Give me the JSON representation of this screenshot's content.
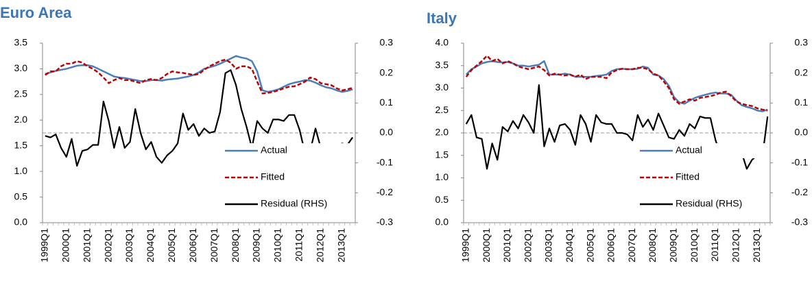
{
  "chart_data": [
    {
      "type": "line",
      "title": "Euro Area",
      "categories": [
        "1999Q1",
        null,
        null,
        null,
        "2000Q1",
        null,
        null,
        null,
        "2001Q1",
        null,
        null,
        null,
        "2002Q1",
        null,
        null,
        null,
        "2003Q1",
        null,
        null,
        null,
        "2004Q1",
        null,
        null,
        null,
        "2005Q1",
        null,
        null,
        null,
        "2006Q1",
        null,
        null,
        null,
        "2007Q1",
        null,
        null,
        null,
        "2008Q1",
        null,
        null,
        null,
        "2009Q1",
        null,
        null,
        null,
        "2010Q1",
        null,
        null,
        null,
        "2011Q1",
        null,
        null,
        null,
        "2012Q1",
        null,
        null,
        null,
        "2013Q1",
        null,
        null
      ],
      "series": [
        {
          "name": "Actual",
          "color": "#4a7ebb",
          "dashed": false,
          "values": [
            2.9,
            2.93,
            2.96,
            2.98,
            3.0,
            3.03,
            3.06,
            3.07,
            3.07,
            3.05,
            3.0,
            2.95,
            2.9,
            2.85,
            2.83,
            2.82,
            2.8,
            2.78,
            2.76,
            2.76,
            2.78,
            2.78,
            2.77,
            2.79,
            2.8,
            2.81,
            2.83,
            2.85,
            2.88,
            2.93,
            3.0,
            3.03,
            3.06,
            3.1,
            3.15,
            3.2,
            3.25,
            3.22,
            3.2,
            3.15,
            2.95,
            2.58,
            2.55,
            2.57,
            2.6,
            2.65,
            2.7,
            2.73,
            2.75,
            2.78,
            2.77,
            2.73,
            2.68,
            2.64,
            2.62,
            2.58,
            2.55,
            2.57,
            2.6
          ]
        },
        {
          "name": "Fitted",
          "color": "#c00000",
          "dashed": true,
          "values": [
            2.88,
            2.95,
            2.95,
            3.05,
            3.1,
            3.1,
            3.15,
            3.12,
            3.05,
            3.0,
            2.93,
            2.83,
            2.72,
            2.78,
            2.82,
            2.78,
            2.78,
            2.75,
            2.72,
            2.78,
            2.8,
            2.78,
            2.82,
            2.9,
            2.95,
            2.93,
            2.92,
            2.9,
            2.88,
            2.9,
            2.98,
            3.05,
            3.1,
            3.15,
            3.18,
            3.12,
            3.0,
            3.05,
            3.05,
            3.0,
            2.75,
            2.52,
            2.53,
            2.55,
            2.58,
            2.62,
            2.65,
            2.66,
            2.7,
            2.75,
            2.83,
            2.8,
            2.72,
            2.7,
            2.68,
            2.62,
            2.58,
            2.6,
            2.63
          ]
        },
        {
          "name": "Residual (RHS)",
          "color": "#000000",
          "dashed": false,
          "axis": "y2",
          "values": [
            -0.01,
            -0.015,
            -0.005,
            -0.05,
            -0.08,
            -0.02,
            -0.11,
            -0.06,
            -0.055,
            -0.04,
            -0.04,
            0.105,
            0.04,
            -0.05,
            0.02,
            -0.05,
            -0.03,
            0.08,
            0.0,
            -0.055,
            -0.03,
            -0.08,
            -0.1,
            -0.075,
            -0.06,
            -0.035,
            0.065,
            0.01,
            0.03,
            -0.01,
            0.015,
            0.0,
            0.005,
            0.07,
            0.2,
            0.21,
            0.16,
            0.08,
            0.02,
            -0.05,
            0.04,
            0.015,
            0.0,
            0.045,
            0.045,
            0.04,
            0.06,
            0.06,
            0.01,
            -0.065,
            -0.06,
            0.015,
            -0.05,
            -0.06,
            -0.045,
            -0.05,
            -0.035,
            -0.04,
            -0.015
          ]
        }
      ],
      "ylim": [
        0,
        3.5
      ],
      "yticks": [
        {
          "value": 0,
          "label": "0.0"
        },
        0.5,
        {
          "value": 1,
          "label": "1.0"
        },
        1.5,
        {
          "value": 2,
          "label": "2.0"
        },
        2.5,
        {
          "value": 3,
          "label": "3.0"
        },
        3.5
      ],
      "y2lim": [
        -0.3,
        0.3
      ],
      "y2ticks": [
        -0.3,
        -0.2,
        -0.1,
        {
          "value": 0,
          "label": "0.0"
        },
        0.1,
        0.2,
        0.3
      ],
      "zero_line": true,
      "grid": false,
      "legend": "lower right"
    },
    {
      "type": "line",
      "title": "Italy",
      "categories": [
        "1999Q1",
        null,
        null,
        null,
        "2000Q1",
        null,
        null,
        null,
        "2001Q1",
        null,
        null,
        null,
        "2002Q1",
        null,
        null,
        null,
        "2003Q1",
        null,
        null,
        null,
        "2004Q1",
        null,
        null,
        null,
        "2005Q1",
        null,
        null,
        null,
        "2006Q1",
        null,
        null,
        null,
        "2007Q1",
        null,
        null,
        null,
        "2008Q1",
        null,
        null,
        null,
        "2009Q1",
        null,
        null,
        null,
        "2010Q1",
        null,
        null,
        null,
        "2011Q1",
        null,
        null,
        null,
        "2012Q1",
        null,
        null,
        null,
        "2013Q1",
        null,
        null
      ],
      "series": [
        {
          "name": "Actual",
          "color": "#4a7ebb",
          "dashed": false,
          "values": [
            3.3,
            3.42,
            3.48,
            3.55,
            3.58,
            3.6,
            3.58,
            3.57,
            3.58,
            3.55,
            3.5,
            3.5,
            3.48,
            3.5,
            3.52,
            3.6,
            3.3,
            3.3,
            3.3,
            3.32,
            3.3,
            3.25,
            3.25,
            3.25,
            3.25,
            3.27,
            3.28,
            3.3,
            3.38,
            3.42,
            3.43,
            3.42,
            3.42,
            3.43,
            3.48,
            3.45,
            3.3,
            3.28,
            3.2,
            3.05,
            2.8,
            2.68,
            2.65,
            2.72,
            2.78,
            2.82,
            2.85,
            2.88,
            2.9,
            2.88,
            2.88,
            2.85,
            2.72,
            2.62,
            2.58,
            2.55,
            2.5,
            2.48,
            2.52
          ]
        },
        {
          "name": "Fitted",
          "color": "#c00000",
          "dashed": true,
          "values": [
            3.25,
            3.4,
            3.5,
            3.6,
            3.72,
            3.6,
            3.65,
            3.55,
            3.6,
            3.55,
            3.48,
            3.45,
            3.42,
            3.45,
            3.48,
            3.4,
            3.28,
            3.32,
            3.3,
            3.28,
            3.3,
            3.25,
            3.3,
            3.2,
            3.25,
            3.25,
            3.25,
            3.22,
            3.35,
            3.4,
            3.43,
            3.42,
            3.42,
            3.45,
            3.45,
            3.42,
            3.32,
            3.28,
            3.15,
            3.0,
            2.75,
            2.65,
            2.7,
            2.75,
            2.72,
            2.78,
            2.8,
            2.82,
            2.85,
            2.9,
            2.92,
            2.82,
            2.7,
            2.65,
            2.62,
            2.6,
            2.55,
            2.52,
            2.5
          ]
        },
        {
          "name": "Residual (RHS)",
          "color": "#000000",
          "dashed": false,
          "axis": "y2",
          "values": [
            0.03,
            0.06,
            -0.015,
            -0.02,
            -0.12,
            -0.035,
            -0.09,
            0.02,
            0.005,
            0.04,
            0.015,
            0.06,
            0.035,
            0.0,
            0.16,
            -0.045,
            0.015,
            -0.03,
            0.025,
            0.03,
            0.01,
            -0.04,
            0.06,
            0.03,
            -0.03,
            0.06,
            0.035,
            0.03,
            0.03,
            0.0,
            0.0,
            -0.005,
            -0.025,
            0.06,
            0.02,
            0.045,
            0.01,
            0.065,
            0.025,
            -0.015,
            -0.02,
            0.01,
            -0.01,
            0.03,
            0.015,
            0.055,
            0.05,
            0.05,
            -0.025,
            -0.075,
            -0.05,
            -0.045,
            -0.08,
            -0.065,
            -0.12,
            -0.09,
            -0.075,
            -0.08,
            0.055
          ]
        }
      ],
      "ylim": [
        0,
        4
      ],
      "yticks": [
        {
          "value": 0,
          "label": "0.0"
        },
        0.5,
        {
          "value": 1,
          "label": "1.0"
        },
        1.5,
        {
          "value": 2,
          "label": "2.0"
        },
        2.5,
        {
          "value": 3,
          "label": "3.0"
        },
        3.5,
        {
          "value": 4,
          "label": "4.0"
        }
      ],
      "y2lim": [
        -0.3,
        0.3
      ],
      "y2ticks": [
        -0.3,
        -0.2,
        -0.1,
        {
          "value": 0,
          "label": "0.0"
        },
        0.1,
        0.2,
        0.3
      ],
      "zero_line": true,
      "grid": false,
      "legend": "lower right"
    }
  ]
}
